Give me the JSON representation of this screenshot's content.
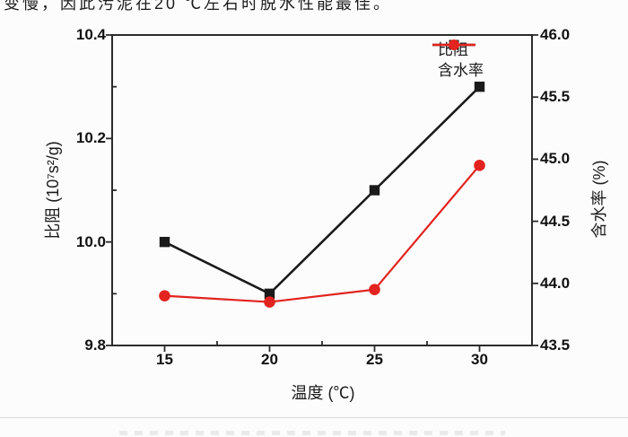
{
  "page": {
    "top_text_fragment": "变慢，因此污泥在20 ℃左右时脱水性能最佳。"
  },
  "chart_data": {
    "type": "line",
    "x": [
      15,
      20,
      25,
      30
    ],
    "xlabel": "温度 (℃)",
    "ylabel_left": "比阻 (10⁷s²/g)",
    "ylabel_right": "含水率 (%)",
    "xlim": [
      12.5,
      32.5
    ],
    "ylim_left": [
      9.8,
      10.4
    ],
    "ylim_right": [
      43.5,
      46.0
    ],
    "x_major_ticks": [
      15,
      20,
      25,
      30
    ],
    "x_minor_ticks": [
      17.5,
      22.5,
      27.5
    ],
    "left_major_ticks": [
      9.8,
      10.0,
      10.2,
      10.4
    ],
    "left_minor_ticks": [
      9.9,
      10.1,
      10.3
    ],
    "right_major_ticks": [
      43.5,
      44.0,
      44.5,
      45.0,
      45.5,
      46.0
    ],
    "legend_position": "top-right-inside",
    "grid": false,
    "frame_color": "#2b2b2b",
    "series": [
      {
        "name": "比阻",
        "axis": "left",
        "marker": "square",
        "color": "#1a1a1a",
        "values": [
          10.0,
          9.9,
          10.1,
          10.3
        ]
      },
      {
        "name": "含水率",
        "axis": "right",
        "marker": "circle",
        "color": "#e2231f",
        "values": [
          43.9,
          43.85,
          43.95,
          44.95
        ]
      }
    ]
  }
}
